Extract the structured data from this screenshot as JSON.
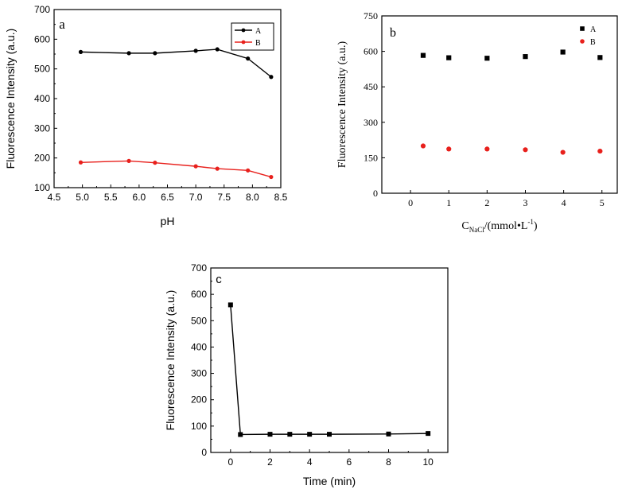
{
  "chart_data": [
    {
      "id": "a",
      "panel_label": "a",
      "type": "line",
      "xlabel": "pH",
      "ylabel": "Fluorescence Intensity (a.u.)",
      "xlim": [
        4.5,
        8.5
      ],
      "ylim": [
        100,
        700
      ],
      "xticks": [
        4.5,
        5.0,
        5.5,
        6.0,
        6.5,
        7.0,
        7.5,
        8.0,
        8.5
      ],
      "xtick_labels": [
        "4.5",
        "5.0",
        "5.5",
        "6.0",
        "6.5",
        "7.0",
        "7.5",
        "8.0",
        "8.5"
      ],
      "yticks": [
        100,
        200,
        300,
        400,
        500,
        600,
        700
      ],
      "ytick_labels": [
        "100",
        "200",
        "300",
        "400",
        "500",
        "600",
        "700"
      ],
      "legend_position": "top-right",
      "series": [
        {
          "name": "A",
          "color": "#000000",
          "marker": "circle",
          "x": [
            4.97,
            5.82,
            6.28,
            7.0,
            7.38,
            7.92,
            8.33
          ],
          "y": [
            557,
            553,
            553,
            561,
            566,
            535,
            473
          ]
        },
        {
          "name": "B",
          "color": "#e8201c",
          "marker": "circle",
          "x": [
            4.97,
            5.82,
            6.28,
            7.0,
            7.38,
            7.92,
            8.33
          ],
          "y": [
            185,
            190,
            184,
            172,
            164,
            158,
            136
          ]
        }
      ]
    },
    {
      "id": "b",
      "panel_label": "b",
      "type": "scatter",
      "xlabel_main": "C",
      "xlabel_sub": "NaCl",
      "xlabel_rest": "/(mmol•L",
      "xlabel_sup": "-1",
      "xlabel_end": ")",
      "ylabel": "Fluorescence Intensity (a.u.)",
      "xlim": [
        -0.75,
        5.4
      ],
      "ylim": [
        0,
        750
      ],
      "xticks": [
        0,
        1,
        2,
        3,
        4,
        5
      ],
      "xtick_labels": [
        "0",
        "1",
        "2",
        "3",
        "4",
        "5"
      ],
      "yticks": [
        0,
        150,
        300,
        450,
        600,
        750
      ],
      "ytick_labels": [
        "0",
        "150",
        "300",
        "450",
        "600",
        "750"
      ],
      "legend_position": "top-right",
      "series": [
        {
          "name": "A",
          "color": "#000000",
          "marker": "square",
          "x": [
            0.33,
            1.0,
            2.0,
            3.0,
            3.98,
            4.95
          ],
          "y": [
            583,
            573,
            571,
            578,
            597,
            574
          ]
        },
        {
          "name": "B",
          "color": "#e8201c",
          "marker": "circle",
          "x": [
            0.33,
            1.0,
            2.0,
            3.0,
            3.98,
            4.95
          ],
          "y": [
            200,
            187,
            187,
            184,
            173,
            178
          ]
        }
      ]
    },
    {
      "id": "c",
      "panel_label": "c",
      "type": "line",
      "xlabel": "Time (min)",
      "ylabel": "Fluorescence Intensity (a.u.)",
      "xlim": [
        -1,
        11
      ],
      "ylim": [
        0,
        700
      ],
      "xticks": [
        0,
        2,
        4,
        6,
        8,
        10
      ],
      "xtick_labels": [
        "0",
        "2",
        "4",
        "6",
        "8",
        "10"
      ],
      "yticks": [
        0,
        100,
        200,
        300,
        400,
        500,
        600,
        700
      ],
      "ytick_labels": [
        "0",
        "100",
        "200",
        "300",
        "400",
        "500",
        "600",
        "700"
      ],
      "legend_position": "none",
      "series": [
        {
          "name": "",
          "color": "#000000",
          "marker": "square",
          "x": [
            0,
            0.5,
            2,
            3,
            4,
            5,
            8,
            10
          ],
          "y": [
            560,
            68,
            69,
            69,
            69,
            69,
            70,
            72
          ]
        }
      ]
    }
  ]
}
